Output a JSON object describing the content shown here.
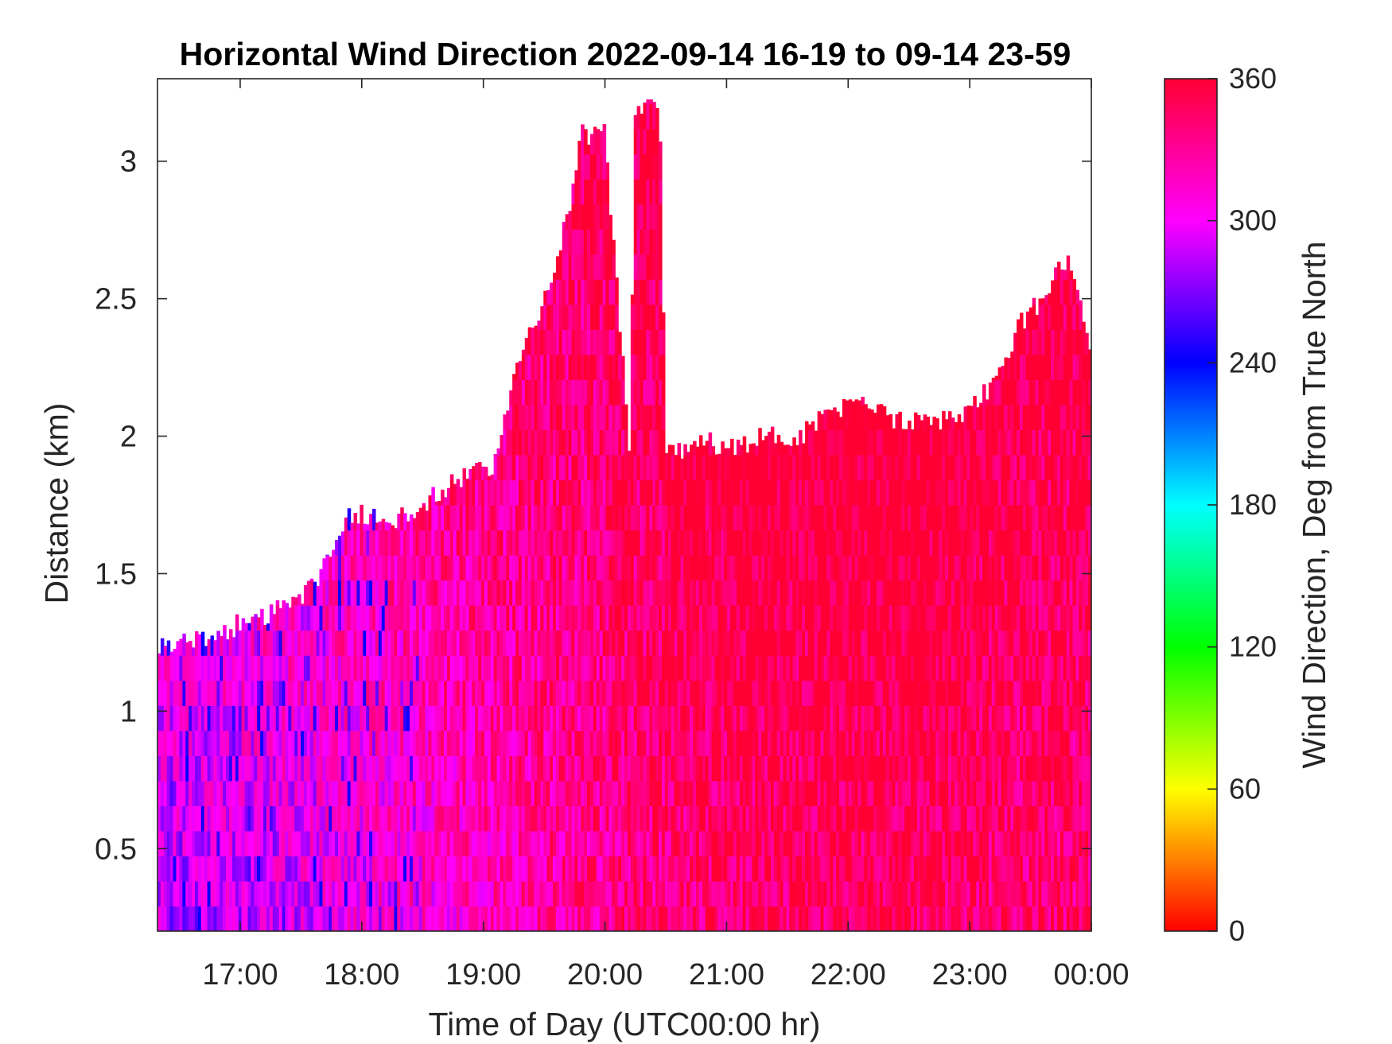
{
  "chart_data": {
    "type": "heatmap",
    "title": "Horizontal Wind Direction 2022-09-14 16-19 to 09-14 23-59",
    "xlabel": "Time of Day (UTC00:00 hr)",
    "ylabel": "Distance (km)",
    "colorbar_label": "Wind Direction, Deg from True North",
    "x_unit": "hour of day",
    "xlim": [
      16.32,
      24.0
    ],
    "ylim": [
      0.2,
      3.3
    ],
    "x_ticks": [
      17,
      18,
      19,
      20,
      21,
      22,
      23,
      24
    ],
    "x_tick_labels": [
      "17:00",
      "18:00",
      "19:00",
      "20:00",
      "21:00",
      "22:00",
      "23:00",
      "00:00"
    ],
    "y_ticks": [
      0.5,
      1,
      1.5,
      2,
      2.5,
      3
    ],
    "y_tick_labels": [
      "0.5",
      "1",
      "1.5",
      "2",
      "2.5",
      "3"
    ],
    "color_range": [
      0,
      360
    ],
    "colorbar_ticks": [
      0,
      60,
      120,
      180,
      240,
      300,
      360
    ],
    "colorbar_tick_labels": [
      "0",
      "60",
      "120",
      "180",
      "240",
      "300",
      "360"
    ],
    "colormap": "hsv",
    "colormap_stops": [
      {
        "value": 0,
        "color": "#ff0000"
      },
      {
        "value": 60,
        "color": "#ffff00"
      },
      {
        "value": 120,
        "color": "#00ff00"
      },
      {
        "value": 180,
        "color": "#00ffff"
      },
      {
        "value": 240,
        "color": "#0000ff"
      },
      {
        "value": 300,
        "color": "#ff00ff"
      },
      {
        "value": 360,
        "color": "#ff0033"
      }
    ],
    "grid": false,
    "data_top_envelope": {
      "time_hr": [
        16.32,
        16.6,
        16.9,
        17.2,
        17.5,
        17.8,
        17.9,
        18.3,
        18.5,
        18.8,
        19.1,
        19.3,
        19.5,
        19.7,
        19.8,
        20.0,
        20.2,
        20.25,
        20.45,
        20.5,
        20.6,
        20.8,
        21.0,
        21.3,
        21.6,
        21.9,
        22.1,
        22.4,
        22.7,
        23.0,
        23.2,
        23.4,
        23.6,
        23.8,
        24.0
      ],
      "top_km": [
        1.25,
        1.25,
        1.3,
        1.35,
        1.4,
        1.6,
        1.72,
        1.7,
        1.75,
        1.85,
        1.9,
        2.3,
        2.5,
        2.8,
        3.1,
        3.1,
        1.95,
        3.2,
        3.2,
        1.95,
        1.95,
        2.0,
        1.95,
        2.0,
        2.0,
        2.1,
        2.15,
        2.05,
        2.05,
        2.1,
        2.2,
        2.4,
        2.5,
        2.65,
        2.3
      ]
    },
    "dominant_direction_deg_by_period": {
      "time_hr": [
        16.5,
        17.5,
        18.5,
        19.5,
        20.5,
        21.5,
        22.5,
        23.5
      ],
      "direction_deg": [
        285,
        295,
        310,
        325,
        340,
        345,
        350,
        340
      ]
    }
  }
}
